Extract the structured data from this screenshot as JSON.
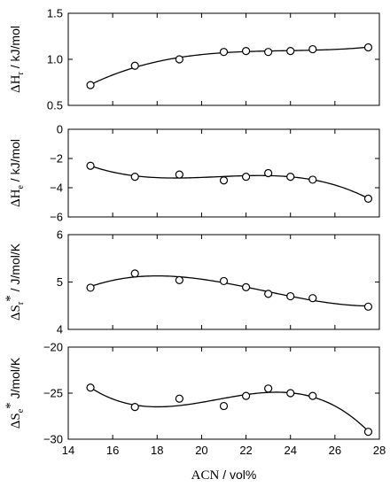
{
  "chart_data": [
    {
      "type": "scatter",
      "ylabel_symbol": "ΔH",
      "ylabel_subscript": "r",
      "ylabel_superscript": "",
      "ylabel_unit": " / kJ/mol",
      "ylim": [
        0.5,
        1.5
      ],
      "yticks": [
        0.5,
        1.0,
        1.5
      ],
      "ytick_labels": [
        "0.5",
        "1.0",
        "1.5"
      ],
      "x": [
        15,
        17,
        19,
        21,
        22,
        23,
        24,
        25,
        27.5
      ],
      "y": [
        0.72,
        0.93,
        1.0,
        1.08,
        1.09,
        1.08,
        1.09,
        1.11,
        1.13
      ],
      "fit_curve": true
    },
    {
      "type": "scatter",
      "ylabel_symbol": "ΔH",
      "ylabel_subscript": "e",
      "ylabel_superscript": "",
      "ylabel_unit": " / kJ/mol",
      "ylim": [
        -6,
        0
      ],
      "yticks": [
        -6,
        -4,
        -2,
        0
      ],
      "ytick_labels": [
        "−6",
        "−4",
        "−2",
        "0"
      ],
      "x": [
        15,
        17,
        19,
        21,
        22,
        23,
        24,
        25,
        27.5
      ],
      "y": [
        -2.5,
        -3.25,
        -3.1,
        -3.5,
        -3.25,
        -3.0,
        -3.25,
        -3.45,
        -4.75
      ],
      "fit_curve": true
    },
    {
      "type": "scatter",
      "ylabel_symbol": "ΔS",
      "ylabel_subscript": "r",
      "ylabel_superscript": "*",
      "ylabel_unit": " / J/mol/K",
      "ylim": [
        4,
        6
      ],
      "yticks": [
        4,
        5,
        6
      ],
      "ytick_labels": [
        "4",
        "5",
        "6"
      ],
      "x": [
        15,
        17,
        19,
        21,
        22,
        23,
        24,
        25,
        27.5
      ],
      "y": [
        4.88,
        5.18,
        5.04,
        5.02,
        4.89,
        4.75,
        4.7,
        4.66,
        4.48
      ],
      "fit_curve": true
    },
    {
      "type": "scatter",
      "ylabel_symbol": "ΔS",
      "ylabel_subscript": "e",
      "ylabel_superscript": "*",
      "ylabel_unit": " J/mol/K",
      "ylim": [
        -30,
        -20
      ],
      "yticks": [
        -30,
        -25,
        -20
      ],
      "ytick_labels": [
        "−30",
        "−25",
        "−20"
      ],
      "x": [
        15,
        17,
        19,
        21,
        22,
        23,
        24,
        25,
        27.5
      ],
      "y": [
        -24.4,
        -26.5,
        -25.6,
        -26.4,
        -25.3,
        -24.5,
        -25.0,
        -25.3,
        -29.2
      ],
      "fit_curve": true
    }
  ],
  "xaxis": {
    "label_symbol": "ACN",
    "label_unit": " / vol%",
    "xlim": [
      14,
      28
    ],
    "xticks": [
      14,
      16,
      18,
      20,
      22,
      24,
      26,
      28
    ],
    "xtick_labels": [
      "14",
      "16",
      "18",
      "20",
      "22",
      "24",
      "26",
      "28"
    ]
  }
}
